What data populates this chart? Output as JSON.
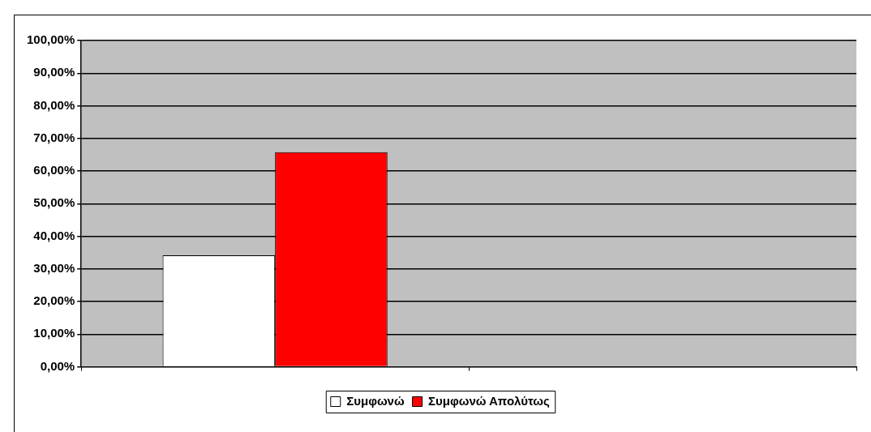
{
  "chart_data": {
    "type": "bar",
    "categories": [
      null,
      null
    ],
    "series": [
      {
        "name": "Συμφωνώ",
        "color": "#ffffff",
        "values": [
          34.2,
          null
        ]
      },
      {
        "name": "Συμφωνώ Απολύτως",
        "color": "#ff0000",
        "values": [
          65.8,
          null
        ]
      }
    ],
    "ylim": [
      0,
      100
    ],
    "yticks": [
      {
        "value": 0,
        "label": "0,00%"
      },
      {
        "value": 10,
        "label": "10,00%"
      },
      {
        "value": 20,
        "label": "20,00%"
      },
      {
        "value": 30,
        "label": "30,00%"
      },
      {
        "value": 40,
        "label": "40,00%"
      },
      {
        "value": 50,
        "label": "50,00%"
      },
      {
        "value": 60,
        "label": "60,00%"
      },
      {
        "value": 70,
        "label": "70,00%"
      },
      {
        "value": 80,
        "label": "80,00%"
      },
      {
        "value": 90,
        "label": "90,00%"
      },
      {
        "value": 100,
        "label": "100,00%"
      }
    ],
    "grid": "y",
    "legend": "bottom"
  }
}
